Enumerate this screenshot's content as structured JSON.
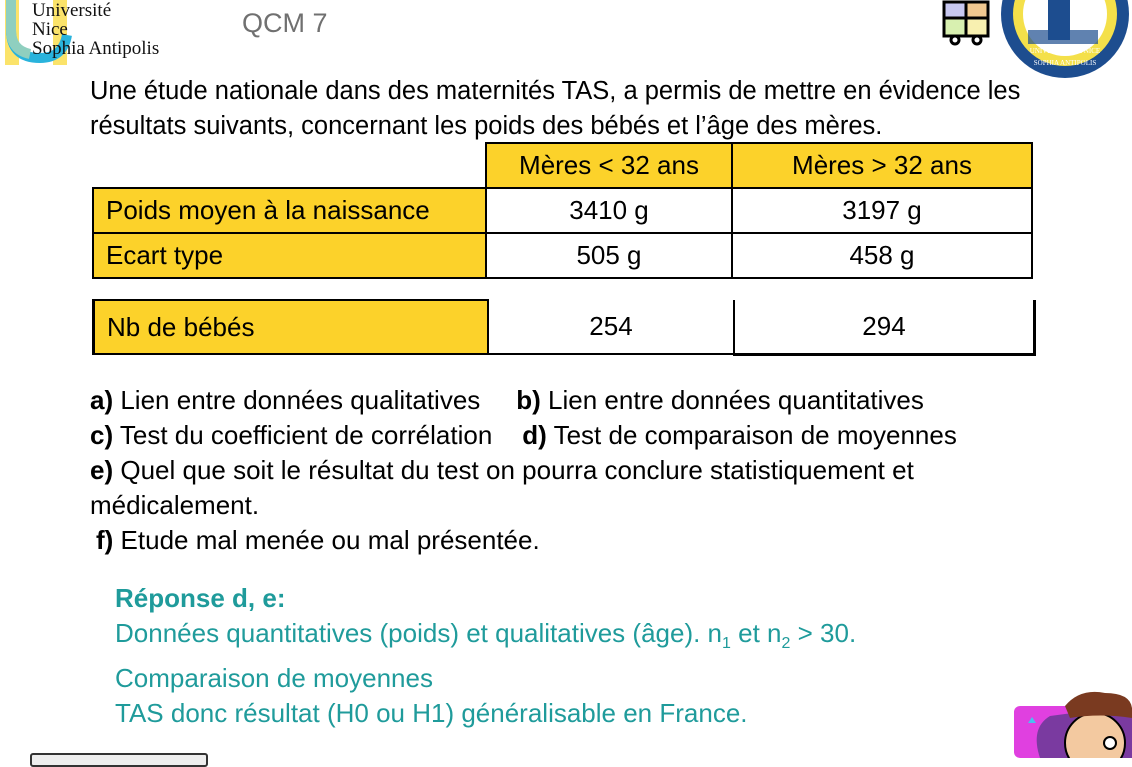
{
  "header": {
    "logo_text": [
      "Université",
      "Nice",
      "Sophia Antipolis"
    ],
    "title": "QCM 7",
    "seal_text": [
      "FACULTE DE MEDECINE",
      "UNIVERSITE DE NICE SOPHIA ANTIPOLIS"
    ]
  },
  "intro": [
    "Une étude nationale dans des maternités TAS, a permis de mettre en évidence les",
    "résultats suivants, concernant les poids des bébés et l’âge des mères."
  ],
  "table": {
    "headers": [
      "Mères < 32 ans",
      "Mères > 32 ans"
    ],
    "rows": [
      {
        "label": "Poids moyen à la naissance",
        "values": [
          "3410 g",
          "3197 g"
        ]
      },
      {
        "label": "Ecart type",
        "values": [
          "505 g",
          "458 g"
        ]
      }
    ],
    "count_row": {
      "label": "Nb de bébés",
      "values": [
        "254",
        "294"
      ]
    }
  },
  "options": [
    {
      "key": "a)",
      "text": " Lien entre données qualitatives"
    },
    {
      "key": "b)",
      "text": " Lien entre données quantitatives"
    },
    {
      "key": "c)",
      "text": " Test du coefficient de corrélation"
    },
    {
      "key": "d)",
      "text": " Test de comparaison de moyennes"
    },
    {
      "key": "e)",
      "text": " Quel que soit le résultat du test on pourra conclure statistiquement et"
    },
    {
      "key": "",
      "text": "médicalement."
    },
    {
      "key": "f)",
      "text": " Etude mal menée ou mal présentée."
    }
  ],
  "answer": {
    "title": "Réponse d, e:",
    "line1_a": "Données quantitatives (poids) et qualitatives (âge). n",
    "sub1": "1",
    "line1_b": " et n",
    "sub2": "2",
    "line1_c": " > 30.",
    "line2": "Comparaison de moyennes",
    "line3": "TAS donc résultat (H0 ou H1) généralisable en France."
  },
  "colors": {
    "highlight": "#fcd22a",
    "answer": "#1f9b9b",
    "title": "#707070"
  }
}
